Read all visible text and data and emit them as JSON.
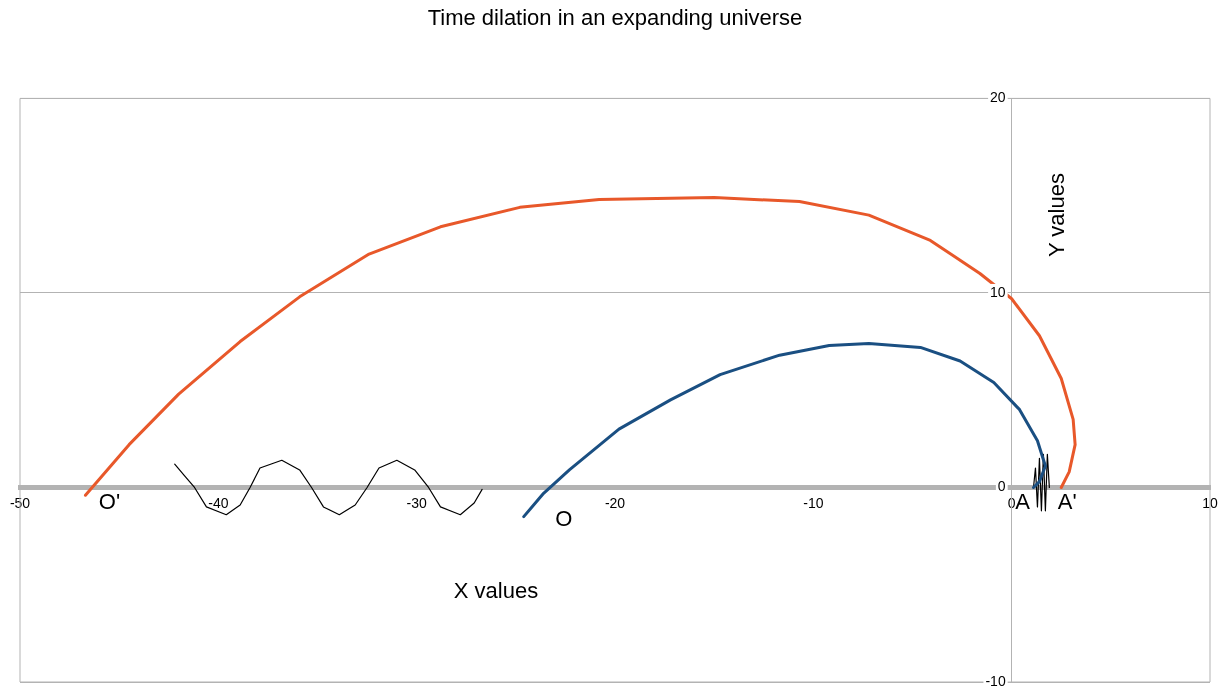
{
  "chart_data": {
    "type": "line",
    "title": "Time dilation in an expanding universe",
    "xlabel": "X values",
    "ylabel": "Y values",
    "xlim": [
      -50,
      10
    ],
    "ylim": [
      -10,
      20
    ],
    "xticks": [
      -50,
      -40,
      -30,
      -20,
      -10,
      0,
      10
    ],
    "yticks": [
      -10,
      0,
      10,
      20
    ],
    "grid": "y",
    "legend": false,
    "marker": "none",
    "line_style": "solid",
    "series": [
      {
        "color": "#e8582a",
        "x": [
          -46.7,
          -44.5,
          -42.0,
          -38.9,
          -35.9,
          -32.4,
          -28.8,
          -24.8,
          -20.8,
          -15.0,
          -10.7,
          -7.2,
          -4.1,
          -1.6,
          0,
          1.4,
          2.5,
          3.1,
          3.2,
          2.9,
          2.5
        ],
        "values": [
          -0.4,
          2.2,
          4.8,
          7.5,
          9.8,
          12.0,
          13.4,
          14.4,
          14.8,
          14.9,
          14.7,
          14.0,
          12.7,
          11.0,
          9.7,
          7.8,
          5.6,
          3.5,
          2.2,
          0.8,
          0
        ]
      },
      {
        "color": "#1a4f82",
        "x": [
          -24.6,
          -23.6,
          -22.3,
          -19.8,
          -17.2,
          -14.7,
          -11.7,
          -9.2,
          -7.2,
          -4.6,
          -2.6,
          -0.9,
          0.4,
          1.3,
          1.7,
          1.4,
          1.1
        ],
        "values": [
          -1.5,
          -0.3,
          0.9,
          3.0,
          4.5,
          5.8,
          6.8,
          7.3,
          7.4,
          7.2,
          6.5,
          5.4,
          4.0,
          2.4,
          1.1,
          0.3,
          0
        ]
      },
      {
        "color": "#000000",
        "x": [
          -42.2,
          -41.7,
          -41.2,
          -40.6,
          -39.6,
          -38.9,
          -38.4,
          -37.9,
          -36.8,
          -35.9,
          -35.3,
          -34.7,
          -33.9,
          -33.1,
          -32.5,
          -31.9,
          -31.0,
          -30.1,
          -29.4,
          -28.8,
          -27.8,
          -27.1,
          -26.7
        ],
        "values": [
          1.2,
          0.6,
          0,
          -1.0,
          -1.4,
          -0.9,
          0,
          1.0,
          1.4,
          0.9,
          0,
          -1.0,
          -1.4,
          -0.9,
          0,
          1.0,
          1.4,
          0.9,
          0,
          -1.0,
          -1.4,
          -0.8,
          -0.1
        ]
      },
      {
        "color": "#000000",
        "x": [
          1.1,
          1.2,
          1.3,
          1.4,
          1.5,
          1.6,
          1.7,
          1.8,
          1.9
        ],
        "values": [
          0,
          1.0,
          -1.0,
          1.5,
          -1.2,
          1.7,
          -1.2,
          1.7,
          0
        ]
      }
    ],
    "annotations": [
      {
        "text": "O'",
        "x": -46.7,
        "y": -0.4
      },
      {
        "text": "O",
        "x": -24.6,
        "y": -1.5
      },
      {
        "text": "A",
        "x": 1.1,
        "y": 0
      },
      {
        "text": "A'",
        "x": 2.5,
        "y": 0
      }
    ]
  }
}
